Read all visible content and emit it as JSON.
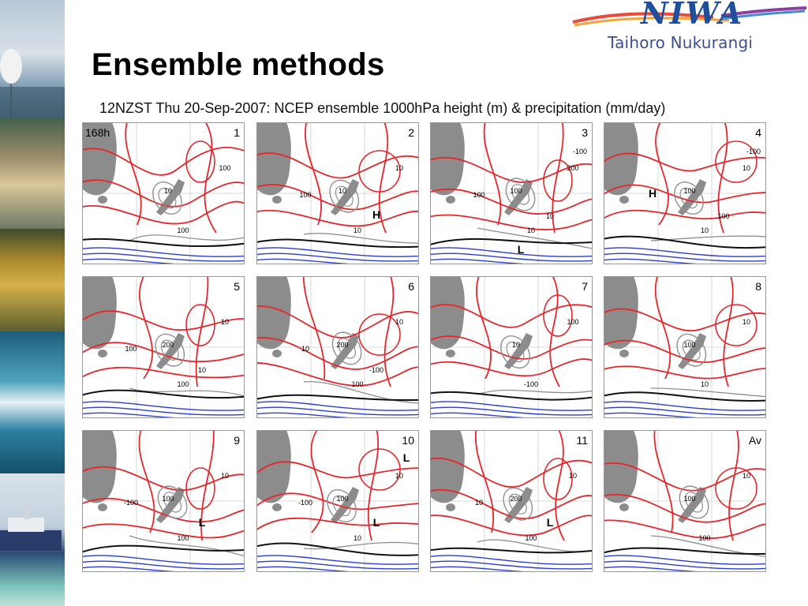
{
  "slide": {
    "title": "Ensemble methods",
    "logo": {
      "name": "NIWA",
      "subtitle": "Taihoro Nukurangi"
    }
  },
  "figure": {
    "caption": "12NZST Thu 20-Sep-2007: NCEP ensemble 1000hPa height (m) & precipitation (mm/day)",
    "lead_time_label": "168h",
    "panels": [
      {
        "label": "1",
        "annotations": [
          "100",
          "10",
          "100"
        ]
      },
      {
        "label": "2",
        "annotations": [
          "10",
          "10",
          "10",
          "100",
          "H"
        ]
      },
      {
        "label": "3",
        "annotations": [
          "200",
          "100",
          "10",
          "100",
          "10",
          "-100",
          "L"
        ]
      },
      {
        "label": "4",
        "annotations": [
          "10",
          "100",
          "10",
          "H",
          "100",
          "-100"
        ]
      },
      {
        "label": "5",
        "annotations": [
          "10",
          "200",
          "100",
          "100",
          "10"
        ]
      },
      {
        "label": "6",
        "annotations": [
          "10",
          "200",
          "100",
          "10",
          "-100"
        ]
      },
      {
        "label": "7",
        "annotations": [
          "100",
          "10",
          "-100"
        ]
      },
      {
        "label": "8",
        "annotations": [
          "10",
          "100",
          "10"
        ]
      },
      {
        "label": "9",
        "annotations": [
          "10",
          "100",
          "100",
          "-100",
          "L"
        ]
      },
      {
        "label": "10",
        "annotations": [
          "10",
          "100",
          "10",
          "-100",
          "L",
          "L"
        ]
      },
      {
        "label": "11",
        "annotations": [
          "10",
          "200",
          "100",
          "10",
          "L"
        ]
      },
      {
        "label": "Av",
        "annotations": [
          "10",
          "100",
          "100"
        ]
      }
    ],
    "colors": {
      "positive_height": "#e8262a",
      "zero_height": "#111111",
      "negative_height": "#2a3fcf",
      "precipitation": "#8f8f8f",
      "land": "#8c8c8c"
    }
  }
}
